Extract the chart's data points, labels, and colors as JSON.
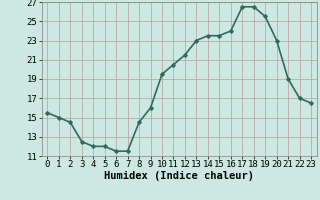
{
  "x": [
    0,
    1,
    2,
    3,
    4,
    5,
    6,
    7,
    8,
    9,
    10,
    11,
    12,
    13,
    14,
    15,
    16,
    17,
    18,
    19,
    20,
    21,
    22,
    23
  ],
  "y": [
    15.5,
    15.0,
    14.5,
    12.5,
    12.0,
    12.0,
    11.5,
    11.5,
    14.5,
    16.0,
    19.5,
    20.5,
    21.5,
    23.0,
    23.5,
    23.5,
    24.0,
    26.5,
    26.5,
    25.5,
    23.0,
    19.0,
    17.0,
    16.5
  ],
  "xlabel": "Humidex (Indice chaleur)",
  "ylim": [
    11,
    27
  ],
  "xlim": [
    -0.5,
    23.5
  ],
  "yticks": [
    11,
    13,
    15,
    17,
    19,
    21,
    23,
    25,
    27
  ],
  "xticks": [
    0,
    1,
    2,
    3,
    4,
    5,
    6,
    7,
    8,
    9,
    10,
    11,
    12,
    13,
    14,
    15,
    16,
    17,
    18,
    19,
    20,
    21,
    22,
    23
  ],
  "line_color": "#2e6b5e",
  "marker": "D",
  "marker_size": 1.8,
  "bg_color": "#cce8e0",
  "grid_color": "#b8a0a0",
  "linewidth": 1.2,
  "xlabel_fontsize": 7.5,
  "tick_fontsize": 6.5
}
